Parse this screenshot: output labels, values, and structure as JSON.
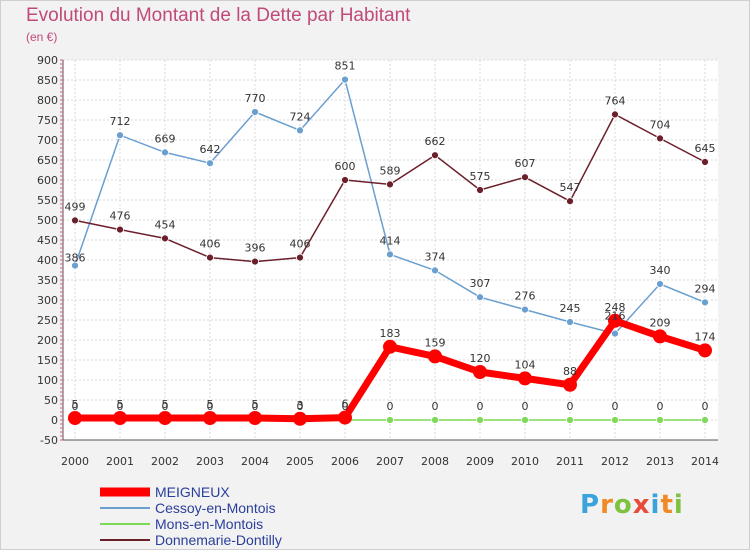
{
  "title": "Evolution du Montant de la Dette par Habitant",
  "subtitle": "(en €)",
  "logo": {
    "text": "Proxiti",
    "colors": [
      "#3aa3dc",
      "#f08a24",
      "#7fc241",
      "#e84b3a",
      "#3aa3dc",
      "#f08a24",
      "#7fc241"
    ]
  },
  "chart_data": {
    "type": "line",
    "x": [
      "2000",
      "2001",
      "2002",
      "2003",
      "2004",
      "2005",
      "2006",
      "2007",
      "2008",
      "2009",
      "2010",
      "2011",
      "2012",
      "2013",
      "2014"
    ],
    "ylim": [
      -50,
      900
    ],
    "yticks": [
      "-50",
      "0",
      "50",
      "100",
      "150",
      "200",
      "250",
      "300",
      "350",
      "400",
      "450",
      "500",
      "550",
      "600",
      "650",
      "700",
      "750",
      "800",
      "850",
      "900"
    ],
    "grid": true,
    "legend_position": "bottom-left",
    "series": [
      {
        "name": "Cessoy-en-Montois",
        "color": "#6a9fd0",
        "width": 1.5,
        "marker": 3.5,
        "values": [
          386,
          712,
          669,
          642,
          770,
          724,
          851,
          414,
          374,
          307,
          276,
          245,
          216,
          340,
          294
        ],
        "labels": [
          "386",
          "712",
          "669",
          "642",
          "770",
          "724",
          "851",
          "414",
          "374",
          "307",
          "276",
          "245",
          "216",
          "340",
          "294"
        ]
      },
      {
        "name": "Donnemarie-Dontilly",
        "color": "#6b1f2a",
        "width": 1.5,
        "marker": 3.5,
        "values": [
          499,
          476,
          454,
          406,
          396,
          406,
          600,
          589,
          662,
          575,
          607,
          547,
          764,
          704,
          645
        ],
        "labels": [
          "499",
          "476",
          "454",
          "406",
          "396",
          "406",
          "600",
          "589",
          "662",
          "575",
          "607",
          "547",
          "764",
          "704",
          "645"
        ]
      },
      {
        "name": "Mons-en-Montois",
        "color": "#7ed957",
        "width": 1.5,
        "marker": 3.5,
        "values": [
          0,
          0,
          0,
          0,
          0,
          0,
          0,
          0,
          0,
          0,
          0,
          0,
          0,
          0,
          0
        ],
        "labels": [
          "0",
          "0",
          "0",
          "0",
          "0",
          "0",
          "0",
          "0",
          "0",
          "0",
          "0",
          "0",
          "0",
          "0",
          "0"
        ]
      },
      {
        "name": "MEIGNEUX",
        "color": "#ff0000",
        "width": 7,
        "marker": 7,
        "values": [
          5,
          5,
          5,
          5,
          5,
          3,
          6,
          183,
          159,
          120,
          104,
          88,
          248,
          209,
          174
        ],
        "labels": [
          "5",
          "5",
          "5",
          "5",
          "5",
          "3",
          "6",
          "183",
          "159",
          "120",
          "104",
          "88",
          "248",
          "209",
          "174"
        ]
      }
    ],
    "legend": [
      "MEIGNEUX",
      "Cessoy-en-Montois",
      "Mons-en-Montois",
      "Donnemarie-Dontilly"
    ]
  }
}
